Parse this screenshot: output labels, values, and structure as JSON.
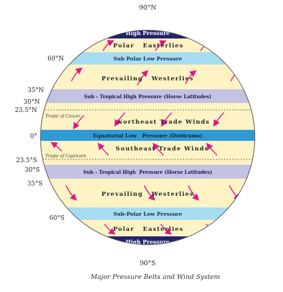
{
  "diagram": {
    "pole_labels": {
      "north": "90°N",
      "south": "90°S"
    },
    "latitudes": [
      {
        "key": "lat-60n",
        "label": "60°N"
      },
      {
        "key": "lat-35n",
        "label": "35°N"
      },
      {
        "key": "lat-30n",
        "label": "30°N"
      },
      {
        "key": "lat-23-5n",
        "label": "23.5°N"
      },
      {
        "key": "lat-0",
        "label": "0°"
      },
      {
        "key": "lat-23-5s",
        "label": "23.5°S"
      },
      {
        "key": "lat-30s",
        "label": "30°S"
      },
      {
        "key": "lat-35s",
        "label": "35°S"
      },
      {
        "key": "lat-60s",
        "label": "60°S"
      }
    ],
    "belts": [
      {
        "key": "north-high",
        "label": "High Pressure"
      },
      {
        "key": "north-polar-easterlies",
        "label": "Polar   Easterlies"
      },
      {
        "key": "north-subpolar-low",
        "label": "Sub Polar Low Pressure"
      },
      {
        "key": "north-westerlies",
        "label": "Prevailing   Westerlies"
      },
      {
        "key": "north-subtropical-high",
        "label": "Sub - Tropical High Pressure (Horse Latitudes)"
      },
      {
        "key": "northeast-trade",
        "label": "Northeast Trade Winds"
      },
      {
        "key": "equatorial-low",
        "label": "Equatorial Low   Pressure (Doldrums)"
      },
      {
        "key": "southeast-trade",
        "label": "Southeast Trade Winds"
      },
      {
        "key": "south-subtropical-high",
        "label": "Sub - Tropical High  Pressure (Horse Latitudes)"
      },
      {
        "key": "south-westerlies",
        "label": "Prevailing   Westerlies"
      },
      {
        "key": "south-subpolar-low",
        "label": "Sub-Polar Low Pressure"
      },
      {
        "key": "south-polar-easterlies",
        "label": "Polar   Easterlies"
      },
      {
        "key": "south-high",
        "label": "High Pressure"
      }
    ],
    "tropic_labels": {
      "cancer": "Tropic of Cancer",
      "capricorn": "Tropic of Capricorn"
    },
    "colors": {
      "high_pressure": "#23236b",
      "low_pressure": "#a6dcf0",
      "subtropical_high": "#c3c2e2",
      "equatorial": "#2e9bd6",
      "wind_zone": "#fdf3c4",
      "arrow": "#e0158a"
    }
  },
  "caption": "Major Pressure Belts and Wind System"
}
